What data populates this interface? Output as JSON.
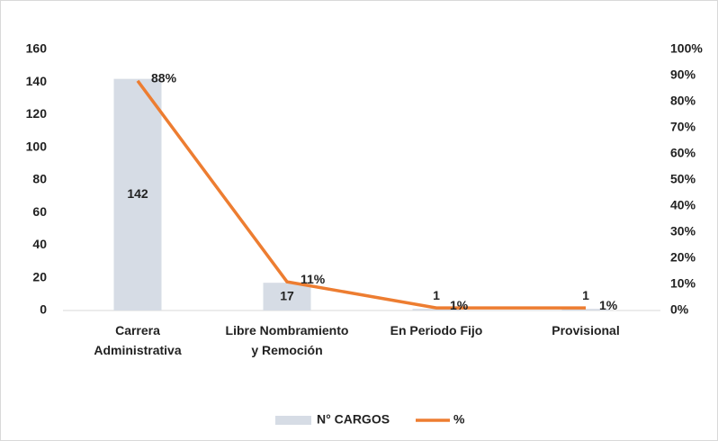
{
  "chart_data": {
    "type": "bar-line",
    "categories": [
      "Carrera Administrativa",
      "Libre Nombramiento y Remoción",
      "En Periodo Fijo",
      "Provisional"
    ],
    "series": [
      {
        "name": "N° CARGOS",
        "type": "bar",
        "color": "#d6dce5",
        "values": [
          142,
          17,
          1,
          1
        ]
      },
      {
        "name": "%",
        "type": "line",
        "axis": "y2",
        "color": "#ed7d31",
        "values": [
          88,
          11,
          1,
          1
        ],
        "value_labels": [
          "88%",
          "11%",
          "1%",
          "1%"
        ]
      }
    ],
    "ylim": [
      0,
      160
    ],
    "yticks": [
      0,
      20,
      40,
      60,
      80,
      100,
      120,
      140,
      160
    ],
    "y2lim": [
      0,
      100
    ],
    "y2ticks": [
      {
        "value": 0,
        "label": "0%"
      },
      {
        "value": 10,
        "label": "10%"
      },
      {
        "value": 20,
        "label": "20%"
      },
      {
        "value": 30,
        "label": "30%"
      },
      {
        "value": 40,
        "label": "40%"
      },
      {
        "value": 50,
        "label": "50%"
      },
      {
        "value": 60,
        "label": "60%"
      },
      {
        "value": 70,
        "label": "70%"
      },
      {
        "value": 80,
        "label": "80%"
      },
      {
        "value": 90,
        "label": "90%"
      },
      {
        "value": 100,
        "label": "100%"
      }
    ],
    "grid": false,
    "legend": "bottom"
  }
}
